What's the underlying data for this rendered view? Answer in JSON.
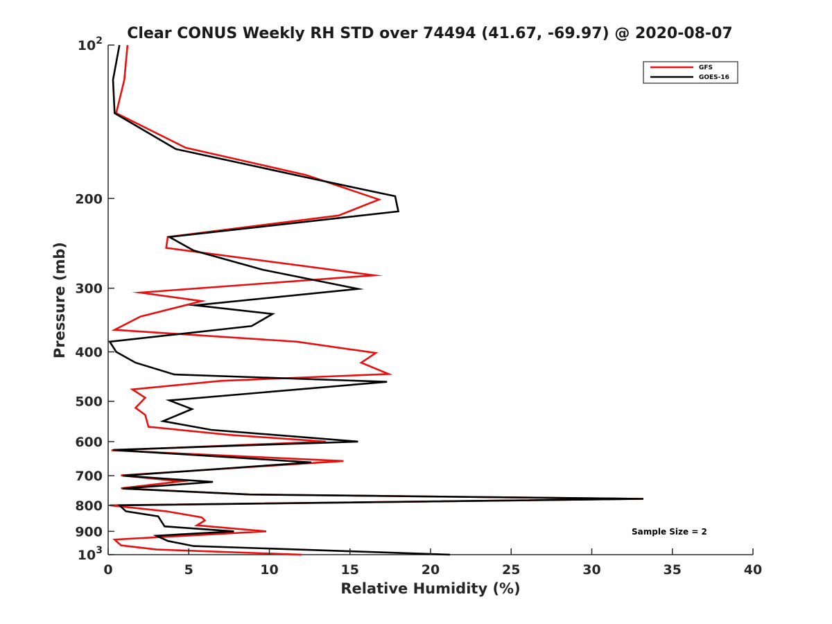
{
  "chart_data": {
    "type": "line",
    "title": "Clear CONUS Weekly RH STD over 74494 (41.67, -69.97) @ 2020-08-07",
    "xlabel": "Relative Humidity (%)",
    "ylabel": "Pressure (mb)",
    "xlim": [
      0,
      40
    ],
    "ylim": [
      100,
      1000
    ],
    "y_scale": "log",
    "y_reversed": true,
    "x_ticks": [
      "0",
      "5",
      "10",
      "15",
      "20",
      "25",
      "30",
      "35",
      "40"
    ],
    "y_ticks": [
      {
        "value": 100,
        "base": "10",
        "exp": "2"
      },
      {
        "value": 200,
        "label": "200"
      },
      {
        "value": 300,
        "label": "300"
      },
      {
        "value": 400,
        "label": "400"
      },
      {
        "value": 500,
        "label": "500"
      },
      {
        "value": 600,
        "label": "600"
      },
      {
        "value": 700,
        "label": "700"
      },
      {
        "value": 800,
        "label": "800"
      },
      {
        "value": 900,
        "label": "900"
      },
      {
        "value": 1000,
        "base": "10",
        "exp": "3"
      }
    ],
    "legend_position": "top-right",
    "annotation": "Sample Size = 2",
    "series": [
      {
        "name": "GFS",
        "color": "#e8100f",
        "points": [
          [
            1.2,
            100
          ],
          [
            1.0,
            117
          ],
          [
            0.5,
            136
          ],
          [
            4.8,
            159
          ],
          [
            12.3,
            180
          ],
          [
            16.8,
            201
          ],
          [
            14.3,
            216
          ],
          [
            3.7,
            238
          ],
          [
            3.6,
            250
          ],
          [
            16.5,
            283
          ],
          [
            2.0,
            306
          ],
          [
            5.8,
            318
          ],
          [
            2.0,
            341
          ],
          [
            0.4,
            362
          ],
          [
            11.7,
            382
          ],
          [
            16.6,
            402
          ],
          [
            15.7,
            420
          ],
          [
            17.4,
            442
          ],
          [
            7.0,
            456
          ],
          [
            1.5,
            474
          ],
          [
            2.3,
            492
          ],
          [
            1.7,
            515
          ],
          [
            2.3,
            532
          ],
          [
            2.5,
            561
          ],
          [
            7.5,
            582
          ],
          [
            13.5,
            600
          ],
          [
            0.2,
            624
          ],
          [
            14.6,
            655
          ],
          [
            0.8,
            699
          ],
          [
            4.5,
            718
          ],
          [
            0.8,
            741
          ],
          [
            8.7,
            762
          ],
          [
            33.2,
            777
          ],
          [
            0.1,
            800
          ],
          [
            3.6,
            822
          ],
          [
            5.8,
            845
          ],
          [
            6.0,
            857
          ],
          [
            5.5,
            876
          ],
          [
            9.8,
            900
          ],
          [
            0.4,
            934
          ],
          [
            0.8,
            959
          ],
          [
            3.0,
            977
          ],
          [
            12.0,
            1000
          ]
        ]
      },
      {
        "name": "GOES-16",
        "color": "#000000",
        "points": [
          [
            0.7,
            100
          ],
          [
            0.3,
            117
          ],
          [
            0.4,
            136
          ],
          [
            4.2,
            160
          ],
          [
            12.7,
            183
          ],
          [
            17.8,
            198
          ],
          [
            18.0,
            212
          ],
          [
            3.8,
            238
          ],
          [
            5.3,
            253
          ],
          [
            9.6,
            276
          ],
          [
            15.5,
            301
          ],
          [
            5.4,
            324
          ],
          [
            10.2,
            337
          ],
          [
            8.9,
            356
          ],
          [
            0.1,
            382
          ],
          [
            0.5,
            400
          ],
          [
            1.7,
            420
          ],
          [
            4.1,
            443
          ],
          [
            17.3,
            458
          ],
          [
            3.8,
            498
          ],
          [
            5.2,
            518
          ],
          [
            3.4,
            547
          ],
          [
            6.4,
            569
          ],
          [
            15.5,
            600
          ],
          [
            0.3,
            623
          ],
          [
            12.6,
            659
          ],
          [
            0.9,
            700
          ],
          [
            6.5,
            720
          ],
          [
            0.9,
            742
          ],
          [
            8.8,
            762
          ],
          [
            33.2,
            777
          ],
          [
            0.7,
            800
          ],
          [
            1.1,
            822
          ],
          [
            3.1,
            841
          ],
          [
            3.3,
            860
          ],
          [
            3.5,
            880
          ],
          [
            7.8,
            900
          ],
          [
            3.0,
            918
          ],
          [
            3.7,
            940
          ],
          [
            5.3,
            962
          ],
          [
            14.8,
            984
          ],
          [
            21.2,
            1000
          ]
        ]
      }
    ]
  }
}
